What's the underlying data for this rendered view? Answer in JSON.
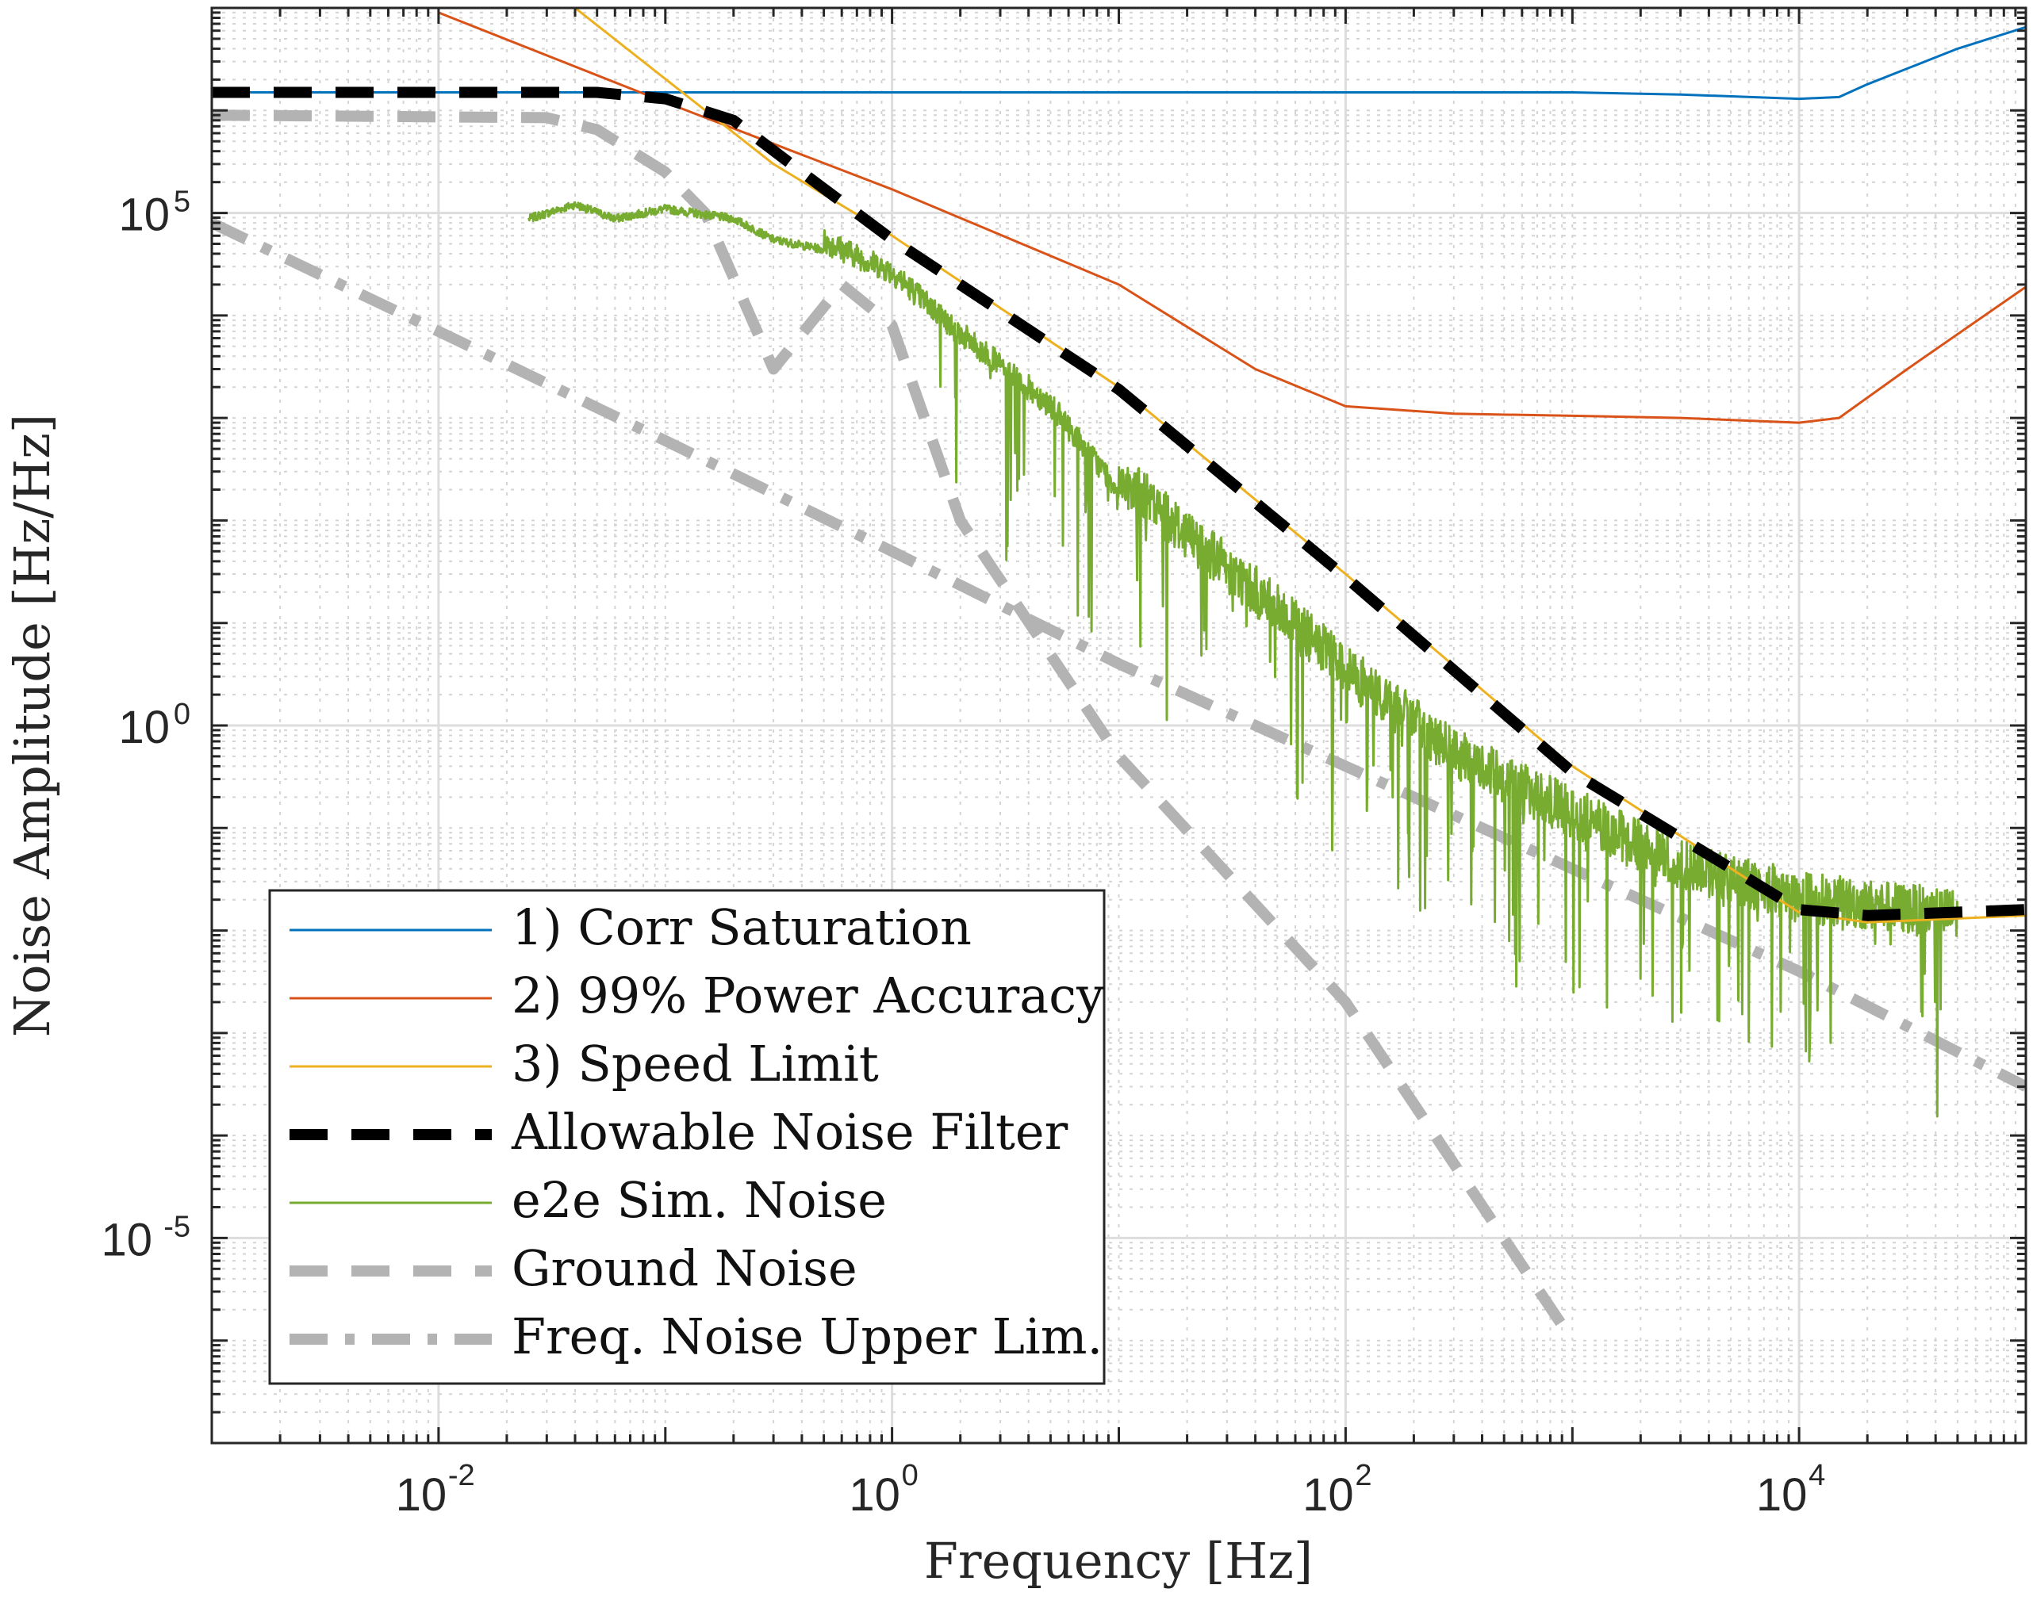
{
  "chart_data": {
    "type": "line",
    "title": "",
    "xlabel": "Frequency [Hz]",
    "ylabel": "Noise Amplitude [Hz/Hz]",
    "xscale": "log",
    "yscale": "log",
    "xlim": [
      0.001,
      100000
    ],
    "ylim": [
      1e-07,
      10000000
    ],
    "grid": true,
    "legend_position": "bottom-left",
    "x_ticks": [
      {
        "value": 0.01,
        "base": "10",
        "exp": "-2"
      },
      {
        "value": 1,
        "base": "10",
        "exp": "0"
      },
      {
        "value": 100,
        "base": "10",
        "exp": "2"
      },
      {
        "value": 10000,
        "base": "10",
        "exp": "4"
      }
    ],
    "y_ticks": [
      {
        "value": 1e-05,
        "base": "10",
        "exp": "-5"
      },
      {
        "value": 1,
        "base": "10",
        "exp": "0"
      },
      {
        "value": 100000,
        "base": "10",
        "exp": "5"
      }
    ],
    "series": [
      {
        "name": "1) Corr Saturation",
        "color": "#0072BD",
        "style": "solid",
        "points": [
          [
            0.001,
            1500000
          ],
          [
            1000,
            1500000
          ],
          [
            3000,
            1430000
          ],
          [
            10000,
            1300000
          ],
          [
            15000,
            1350000
          ],
          [
            20000,
            1800000
          ],
          [
            50000,
            4000000
          ],
          [
            100000,
            6500000
          ]
        ]
      },
      {
        "name": "2) 99% Power Accuracy",
        "color": "#D95319",
        "style": "solid",
        "points": [
          [
            0.01,
            9000000
          ],
          [
            0.1,
            1200000
          ],
          [
            1,
            170000
          ],
          [
            10,
            20000
          ],
          [
            40,
            3000
          ],
          [
            100,
            1300
          ],
          [
            300,
            1100
          ],
          [
            1000,
            1050
          ],
          [
            3000,
            1000
          ],
          [
            10000,
            900
          ],
          [
            15000,
            1000
          ],
          [
            30000,
            3000
          ],
          [
            100000,
            19000
          ]
        ]
      },
      {
        "name": "3) Speed Limit",
        "color": "#EDB120",
        "style": "solid",
        "points": [
          [
            0.04,
            10000000
          ],
          [
            0.3,
            300000
          ],
          [
            1,
            60000
          ],
          [
            10,
            2000
          ],
          [
            100,
            30
          ],
          [
            1000,
            0.4
          ],
          [
            10000,
            0.015
          ],
          [
            20000,
            0.012
          ],
          [
            100000,
            0.014
          ]
        ]
      },
      {
        "name": "Allowable Noise Filter",
        "color": "#000000",
        "style": "dashed",
        "points": [
          [
            0.001,
            1500000
          ],
          [
            0.05,
            1500000
          ],
          [
            0.1,
            1300000
          ],
          [
            0.2,
            800000
          ],
          [
            0.4,
            250000
          ],
          [
            1,
            55000
          ],
          [
            10,
            1900
          ],
          [
            100,
            28
          ],
          [
            1000,
            0.35
          ],
          [
            10000,
            0.016
          ],
          [
            20000,
            0.014
          ],
          [
            100000,
            0.016
          ]
        ]
      },
      {
        "name": "e2e Sim. Noise",
        "color": "#77AC30",
        "style": "solid-noisy",
        "points": [
          [
            0.025,
            80000
          ],
          [
            0.04,
            110000
          ],
          [
            0.06,
            80000
          ],
          [
            0.1,
            100000
          ],
          [
            0.2,
            80000
          ],
          [
            0.3,
            50000
          ],
          [
            0.5,
            40000
          ],
          [
            1,
            20000
          ],
          [
            2,
            5000
          ],
          [
            5,
            1000
          ],
          [
            10,
            150
          ],
          [
            30,
            20
          ],
          [
            100,
            2
          ],
          [
            300,
            0.3
          ],
          [
            1000,
            0.08
          ],
          [
            3000,
            0.025
          ],
          [
            10000,
            0.012
          ],
          [
            50000,
            0.008
          ]
        ]
      },
      {
        "name": "Ground Noise",
        "color": "#B3B3B3",
        "style": "dashed",
        "points": [
          [
            0.001,
            900000
          ],
          [
            0.03,
            850000
          ],
          [
            0.05,
            650000
          ],
          [
            0.1,
            250000
          ],
          [
            0.15,
            100000
          ],
          [
            0.3,
            3000
          ],
          [
            0.6,
            20000
          ],
          [
            1,
            8000
          ],
          [
            2,
            100
          ],
          [
            10,
            0.5
          ],
          [
            100,
            0.002
          ],
          [
            1000,
            1e-06
          ]
        ]
      },
      {
        "name": "Freq. Noise Upper Lim.",
        "color": "#B3B3B3",
        "style": "dashdot",
        "points": [
          [
            0.001,
            80000
          ],
          [
            0.01,
            7000
          ],
          [
            0.1,
            600
          ],
          [
            1,
            50
          ],
          [
            10,
            4
          ],
          [
            100,
            0.4
          ],
          [
            1000,
            0.04
          ],
          [
            10000,
            0.004
          ],
          [
            100000,
            0.0003
          ]
        ]
      }
    ],
    "legend": [
      {
        "label": "1) Corr Saturation"
      },
      {
        "label": "2) 99% Power Accuracy"
      },
      {
        "label": "3) Speed Limit"
      },
      {
        "label": "Allowable Noise Filter"
      },
      {
        "label": "e2e Sim. Noise"
      },
      {
        "label": "Ground Noise"
      },
      {
        "label": "Freq. Noise Upper Lim."
      }
    ]
  }
}
